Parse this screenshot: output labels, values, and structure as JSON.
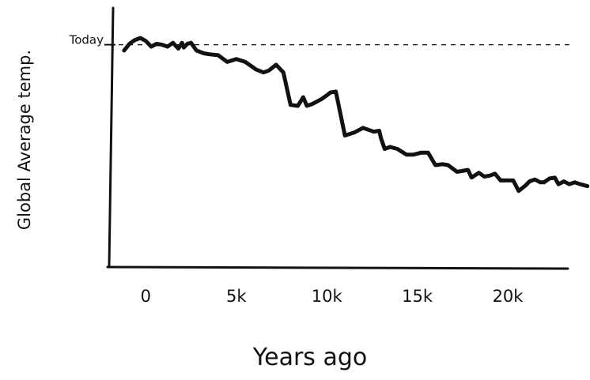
{
  "chart_data": {
    "type": "line",
    "title": "",
    "xlabel": "Years ago",
    "ylabel": "Global Average temp.",
    "reference_line": {
      "label": "Today",
      "y": 0,
      "style": "dashed"
    },
    "x_ticks": [
      {
        "value": 0,
        "label": "0"
      },
      {
        "value": 5000,
        "label": "5k"
      },
      {
        "value": 10000,
        "label": "10k"
      },
      {
        "value": 15000,
        "label": "15k"
      },
      {
        "value": 20000,
        "label": "20k"
      }
    ],
    "xlim": [
      -1500,
      24500
    ],
    "ylim": [
      -11.3,
      1.1
    ],
    "grid": false,
    "legend": "none",
    "line_color": "#111111",
    "series": [
      {
        "x": [
          -1200,
          -900,
          -600,
          -300,
          0,
          300,
          600,
          900,
          1200,
          1500,
          1800,
          2000,
          2100,
          2300,
          2500,
          2800,
          3200,
          3500,
          4000,
          4500,
          5000,
          5500,
          5800,
          6100,
          6500,
          6800,
          7200,
          7600,
          8000,
          8400,
          8700,
          8900,
          9200,
          9300,
          9700,
          10000,
          10200,
          10500,
          11000,
          11500,
          12000,
          12300,
          12600,
          12900,
          13000,
          13200,
          13500,
          13900,
          14400,
          14800,
          15200,
          15600,
          16000,
          16400,
          16700,
          17200,
          17800,
          18000,
          18400,
          18700,
          19000,
          19300,
          19600,
          20000,
          20300,
          20600,
          21000,
          21200,
          21500,
          21800,
          22000,
          22300,
          22600,
          22800,
          23100,
          23400,
          23700,
          24000,
          24400
        ],
        "y": [
          -0.3,
          0.05,
          0.25,
          0.35,
          0.2,
          -0.1,
          0.05,
          0.0,
          -0.1,
          0.1,
          -0.2,
          0.1,
          -0.15,
          0.05,
          0.1,
          -0.3,
          -0.45,
          -0.5,
          -0.55,
          -0.9,
          -0.75,
          -0.9,
          -1.1,
          -1.3,
          -1.45,
          -1.35,
          -1.05,
          -1.45,
          -3.15,
          -3.2,
          -2.75,
          -3.2,
          -3.1,
          -3.05,
          -2.85,
          -2.65,
          -2.5,
          -2.45,
          -4.75,
          -4.6,
          -4.35,
          -4.45,
          -4.55,
          -4.5,
          -4.9,
          -5.45,
          -5.35,
          -5.45,
          -5.75,
          -5.75,
          -5.65,
          -5.65,
          -6.3,
          -6.25,
          -6.3,
          -6.65,
          -6.55,
          -6.95,
          -6.7,
          -6.9,
          -6.85,
          -6.75,
          -7.1,
          -7.1,
          -7.1,
          -7.65,
          -7.35,
          -7.15,
          -7.05,
          -7.2,
          -7.2,
          -7.0,
          -6.95,
          -7.3,
          -7.15,
          -7.3,
          -7.2,
          -7.3,
          -7.4
        ]
      }
    ]
  }
}
